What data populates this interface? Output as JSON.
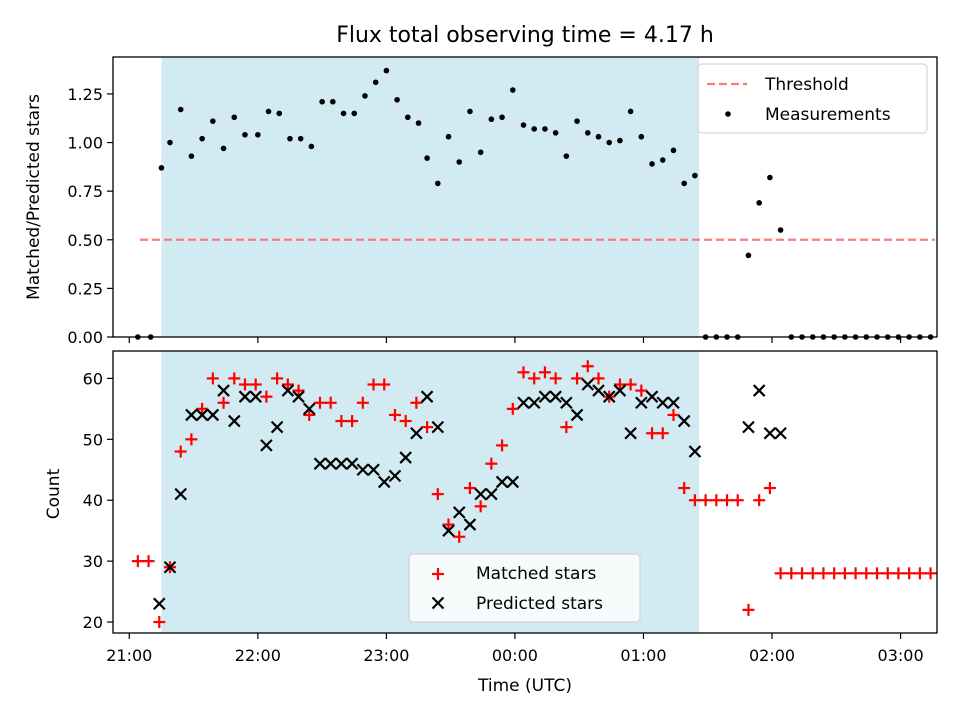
{
  "chart_data": [
    {
      "type": "scatter",
      "title": "Flux total observing time = 4.17 h",
      "xlabel": "",
      "ylabel": "Matched/Predicted stars",
      "ylim": [
        0,
        1.44
      ],
      "yticks": [
        "0.00",
        "0.25",
        "0.50",
        "0.75",
        "1.00",
        "1.25"
      ],
      "grid": false,
      "legend": "top-right",
      "shaded_interval": [
        "21:15",
        "01:26"
      ],
      "threshold": {
        "name": "Threshold",
        "value": 0.5,
        "x_range": [
          "21:05",
          "03:16"
        ],
        "color": "#ff7b7b"
      },
      "series": [
        {
          "name": "Measurements",
          "color": "#000000",
          "points": [
            [
              "21:04",
              0.0
            ],
            [
              "21:10",
              0.0
            ],
            [
              "21:15",
              0.87
            ],
            [
              "21:19",
              1.0
            ],
            [
              "21:24",
              1.17
            ],
            [
              "21:29",
              0.93
            ],
            [
              "21:34",
              1.02
            ],
            [
              "21:39",
              1.11
            ],
            [
              "21:44",
              0.97
            ],
            [
              "21:49",
              1.13
            ],
            [
              "21:54",
              1.04
            ],
            [
              "22:00",
              1.04
            ],
            [
              "22:05",
              1.16
            ],
            [
              "22:10",
              1.15
            ],
            [
              "22:15",
              1.02
            ],
            [
              "22:20",
              1.02
            ],
            [
              "22:25",
              0.98
            ],
            [
              "22:30",
              1.21
            ],
            [
              "22:35",
              1.21
            ],
            [
              "22:40",
              1.15
            ],
            [
              "22:45",
              1.15
            ],
            [
              "22:50",
              1.24
            ],
            [
              "22:55",
              1.31
            ],
            [
              "23:00",
              1.37
            ],
            [
              "23:05",
              1.22
            ],
            [
              "23:10",
              1.13
            ],
            [
              "23:15",
              1.1
            ],
            [
              "23:19",
              0.92
            ],
            [
              "23:24",
              0.79
            ],
            [
              "23:29",
              1.03
            ],
            [
              "23:34",
              0.9
            ],
            [
              "23:39",
              1.16
            ],
            [
              "23:44",
              0.95
            ],
            [
              "23:49",
              1.12
            ],
            [
              "23:54",
              1.13
            ],
            [
              "23:59",
              1.27
            ],
            [
              "00:04",
              1.09
            ],
            [
              "00:09",
              1.07
            ],
            [
              "00:14",
              1.07
            ],
            [
              "00:19",
              1.05
            ],
            [
              "00:24",
              0.93
            ],
            [
              "00:29",
              1.11
            ],
            [
              "00:34",
              1.05
            ],
            [
              "00:39",
              1.03
            ],
            [
              "00:44",
              1.0
            ],
            [
              "00:49",
              1.01
            ],
            [
              "00:54",
              1.16
            ],
            [
              "00:59",
              1.03
            ],
            [
              "01:04",
              0.89
            ],
            [
              "01:09",
              0.91
            ],
            [
              "01:14",
              0.96
            ],
            [
              "01:19",
              0.79
            ],
            [
              "01:24",
              0.83
            ],
            [
              "01:29",
              0.0
            ],
            [
              "01:34",
              0.0
            ],
            [
              "01:39",
              0.0
            ],
            [
              "01:44",
              0.0
            ],
            [
              "01:49",
              0.42
            ],
            [
              "01:54",
              0.69
            ],
            [
              "01:59",
              0.82
            ],
            [
              "02:04",
              0.55
            ],
            [
              "02:09",
              0.0
            ],
            [
              "02:14",
              0.0
            ],
            [
              "02:19",
              0.0
            ],
            [
              "02:24",
              0.0
            ],
            [
              "02:29",
              0.0
            ],
            [
              "02:34",
              0.0
            ],
            [
              "02:39",
              0.0
            ],
            [
              "02:44",
              0.0
            ],
            [
              "02:49",
              0.0
            ],
            [
              "02:54",
              0.0
            ],
            [
              "02:59",
              0.0
            ],
            [
              "03:04",
              0.0
            ],
            [
              "03:09",
              0.0
            ],
            [
              "03:14",
              0.0
            ]
          ]
        }
      ]
    },
    {
      "type": "scatter",
      "title": "",
      "xlabel": "Time (UTC)",
      "ylabel": "Count",
      "ylim": [
        18.2,
        64.5
      ],
      "yticks": [
        "20",
        "30",
        "40",
        "50",
        "60"
      ],
      "xticks": [
        "21:00",
        "22:00",
        "23:00",
        "00:00",
        "01:00",
        "02:00",
        "03:00"
      ],
      "grid": false,
      "legend": "lower-center",
      "shaded_interval": [
        "21:15",
        "01:26"
      ],
      "series": [
        {
          "name": "Matched stars",
          "marker": "+",
          "color": "#ff0000",
          "points": [
            [
              "21:04",
              30
            ],
            [
              "21:09",
              30
            ],
            [
              "21:14",
              20
            ],
            [
              "21:19",
              29
            ],
            [
              "21:24",
              48
            ],
            [
              "21:29",
              50
            ],
            [
              "21:34",
              55
            ],
            [
              "21:39",
              60
            ],
            [
              "21:44",
              56
            ],
            [
              "21:49",
              60
            ],
            [
              "21:54",
              59
            ],
            [
              "21:59",
              59
            ],
            [
              "22:04",
              57
            ],
            [
              "22:09",
              60
            ],
            [
              "22:14",
              59
            ],
            [
              "22:19",
              58
            ],
            [
              "22:24",
              54
            ],
            [
              "22:29",
              56
            ],
            [
              "22:34",
              56
            ],
            [
              "22:39",
              53
            ],
            [
              "22:44",
              53
            ],
            [
              "22:49",
              56
            ],
            [
              "22:54",
              59
            ],
            [
              "22:59",
              59
            ],
            [
              "23:04",
              54
            ],
            [
              "23:09",
              53
            ],
            [
              "23:14",
              56
            ],
            [
              "23:19",
              52
            ],
            [
              "23:24",
              41
            ],
            [
              "23:29",
              36
            ],
            [
              "23:34",
              34
            ],
            [
              "23:39",
              42
            ],
            [
              "23:44",
              39
            ],
            [
              "23:49",
              46
            ],
            [
              "23:54",
              49
            ],
            [
              "23:59",
              55
            ],
            [
              "00:04",
              61
            ],
            [
              "00:09",
              60
            ],
            [
              "00:14",
              61
            ],
            [
              "00:19",
              60
            ],
            [
              "00:24",
              52
            ],
            [
              "00:29",
              60
            ],
            [
              "00:34",
              62
            ],
            [
              "00:39",
              60
            ],
            [
              "00:44",
              57
            ],
            [
              "00:49",
              59
            ],
            [
              "00:54",
              59
            ],
            [
              "00:59",
              58
            ],
            [
              "01:04",
              51
            ],
            [
              "01:09",
              51
            ],
            [
              "01:14",
              54
            ],
            [
              "01:19",
              42
            ],
            [
              "01:24",
              40
            ],
            [
              "01:29",
              40
            ],
            [
              "01:34",
              40
            ],
            [
              "01:39",
              40
            ],
            [
              "01:44",
              40
            ],
            [
              "01:49",
              22
            ],
            [
              "01:54",
              40
            ],
            [
              "01:59",
              42
            ],
            [
              "02:04",
              28
            ],
            [
              "02:09",
              28
            ],
            [
              "02:14",
              28
            ],
            [
              "02:19",
              28
            ],
            [
              "02:24",
              28
            ],
            [
              "02:29",
              28
            ],
            [
              "02:34",
              28
            ],
            [
              "02:39",
              28
            ],
            [
              "02:44",
              28
            ],
            [
              "02:49",
              28
            ],
            [
              "02:54",
              28
            ],
            [
              "02:59",
              28
            ],
            [
              "03:04",
              28
            ],
            [
              "03:09",
              28
            ],
            [
              "03:14",
              28
            ]
          ]
        },
        {
          "name": "Predicted stars",
          "marker": "x",
          "color": "#000000",
          "points": [
            [
              "21:14",
              23
            ],
            [
              "21:19",
              29
            ],
            [
              "21:24",
              41
            ],
            [
              "21:29",
              54
            ],
            [
              "21:34",
              54
            ],
            [
              "21:39",
              54
            ],
            [
              "21:44",
              58
            ],
            [
              "21:49",
              53
            ],
            [
              "21:54",
              57
            ],
            [
              "21:59",
              57
            ],
            [
              "22:04",
              49
            ],
            [
              "22:09",
              52
            ],
            [
              "22:14",
              58
            ],
            [
              "22:19",
              57
            ],
            [
              "22:24",
              55
            ],
            [
              "22:29",
              46
            ],
            [
              "22:34",
              46
            ],
            [
              "22:39",
              46
            ],
            [
              "22:44",
              46
            ],
            [
              "22:49",
              45
            ],
            [
              "22:54",
              45
            ],
            [
              "22:59",
              43
            ],
            [
              "23:04",
              44
            ],
            [
              "23:09",
              47
            ],
            [
              "23:14",
              51
            ],
            [
              "23:19",
              57
            ],
            [
              "23:24",
              52
            ],
            [
              "23:29",
              35
            ],
            [
              "23:34",
              38
            ],
            [
              "23:39",
              36
            ],
            [
              "23:44",
              41
            ],
            [
              "23:49",
              41
            ],
            [
              "23:54",
              43
            ],
            [
              "23:59",
              43
            ],
            [
              "00:04",
              56
            ],
            [
              "00:09",
              56
            ],
            [
              "00:14",
              57
            ],
            [
              "00:19",
              57
            ],
            [
              "00:24",
              56
            ],
            [
              "00:29",
              54
            ],
            [
              "00:34",
              59
            ],
            [
              "00:39",
              58
            ],
            [
              "00:44",
              57
            ],
            [
              "00:49",
              58
            ],
            [
              "00:54",
              51
            ],
            [
              "00:59",
              56
            ],
            [
              "01:04",
              57
            ],
            [
              "01:09",
              56
            ],
            [
              "01:14",
              56
            ],
            [
              "01:19",
              53
            ],
            [
              "01:24",
              48
            ],
            [
              "01:49",
              52
            ],
            [
              "01:54",
              58
            ],
            [
              "01:59",
              51
            ],
            [
              "02:04",
              51
            ]
          ]
        }
      ]
    }
  ]
}
